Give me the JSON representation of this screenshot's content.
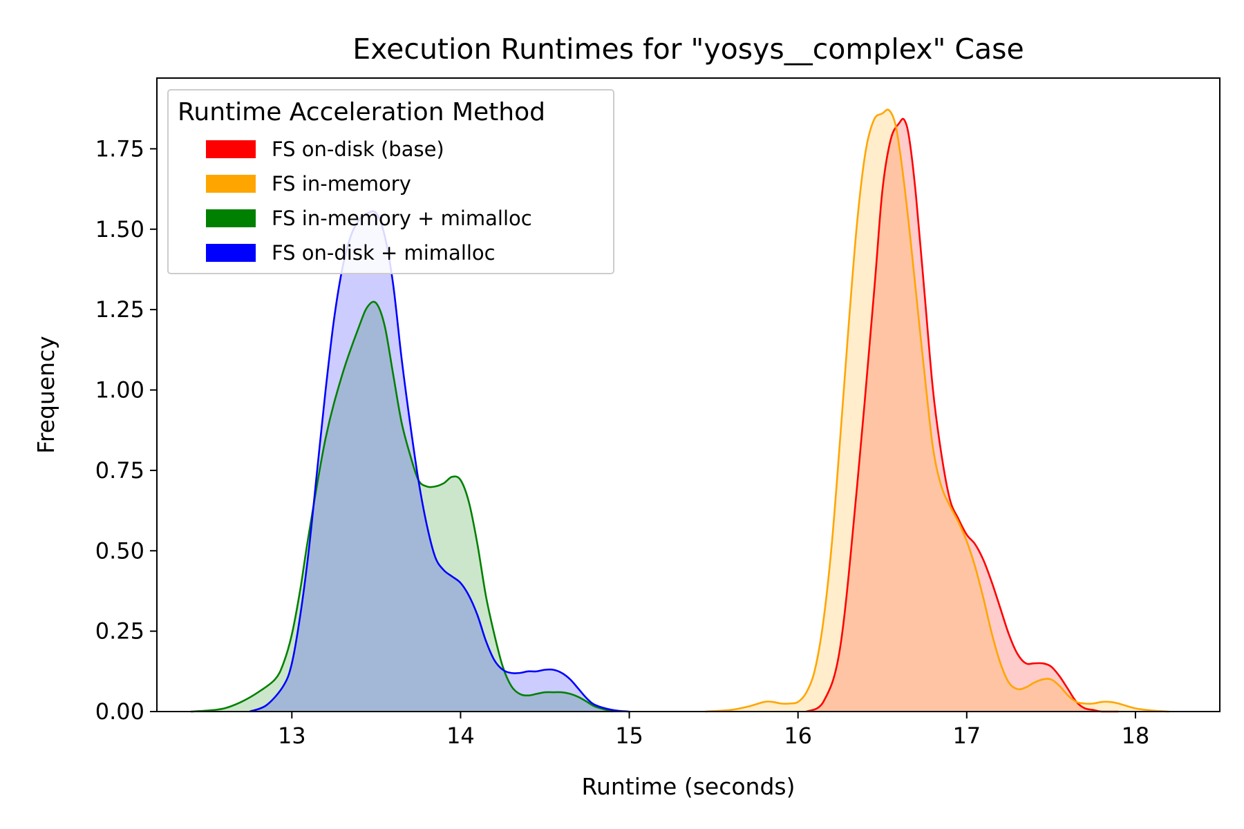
{
  "chart_data": {
    "type": "area",
    "title": "Execution Runtimes for \"yosys__complex\" Case",
    "xlabel": "Runtime (seconds)",
    "ylabel": "Frequency",
    "xlim": [
      12.2,
      18.5
    ],
    "ylim": [
      0,
      1.97
    ],
    "xticks": [
      "13",
      "14",
      "15",
      "16",
      "17",
      "18"
    ],
    "yticks": [
      "0.00",
      "0.25",
      "0.50",
      "0.75",
      "1.00",
      "1.25",
      "1.50",
      "1.75"
    ],
    "grid": false,
    "legend": {
      "title": "Runtime Acceleration Method",
      "placement": "upper-left"
    },
    "series": [
      {
        "name": "FS on-disk (base)",
        "color": "#ff0000",
        "x": [
          16.05,
          16.15,
          16.25,
          16.35,
          16.45,
          16.5,
          16.55,
          16.6,
          16.63,
          16.66,
          16.7,
          16.75,
          16.8,
          16.85,
          16.9,
          16.95,
          17.0,
          17.05,
          17.1,
          17.15,
          17.2,
          17.25,
          17.3,
          17.35,
          17.4,
          17.45,
          17.5,
          17.55,
          17.6,
          17.65,
          17.7,
          17.75,
          17.8,
          17.9
        ],
        "y": [
          0.0,
          0.03,
          0.2,
          0.7,
          1.3,
          1.62,
          1.78,
          1.83,
          1.84,
          1.78,
          1.6,
          1.3,
          1.0,
          0.8,
          0.66,
          0.6,
          0.55,
          0.52,
          0.47,
          0.4,
          0.32,
          0.24,
          0.18,
          0.15,
          0.15,
          0.15,
          0.14,
          0.11,
          0.07,
          0.03,
          0.01,
          0.005,
          0.0,
          0.0
        ]
      },
      {
        "name": "FS in-memory",
        "color": "#ffa500",
        "x": [
          15.45,
          15.6,
          15.7,
          15.8,
          15.85,
          15.9,
          15.95,
          16.0,
          16.05,
          16.1,
          16.15,
          16.2,
          16.25,
          16.3,
          16.35,
          16.4,
          16.45,
          16.5,
          16.54,
          16.58,
          16.62,
          16.66,
          16.7,
          16.75,
          16.8,
          16.85,
          16.9,
          16.95,
          17.0,
          17.05,
          17.1,
          17.15,
          17.2,
          17.25,
          17.3,
          17.35,
          17.4,
          17.45,
          17.5,
          17.55,
          17.6,
          17.65,
          17.7,
          17.75,
          17.8,
          17.85,
          17.9,
          18.0,
          18.1,
          18.2
        ],
        "y": [
          0.0,
          0.005,
          0.015,
          0.03,
          0.03,
          0.025,
          0.025,
          0.03,
          0.06,
          0.13,
          0.28,
          0.52,
          0.85,
          1.2,
          1.52,
          1.74,
          1.84,
          1.86,
          1.87,
          1.82,
          1.68,
          1.5,
          1.3,
          1.05,
          0.82,
          0.7,
          0.64,
          0.59,
          0.53,
          0.45,
          0.35,
          0.24,
          0.15,
          0.09,
          0.07,
          0.075,
          0.09,
          0.1,
          0.1,
          0.08,
          0.05,
          0.03,
          0.025,
          0.025,
          0.03,
          0.03,
          0.025,
          0.01,
          0.003,
          0.0
        ]
      },
      {
        "name": "FS in-memory + mimalloc",
        "color": "#008000",
        "x": [
          12.4,
          12.5,
          12.6,
          12.7,
          12.8,
          12.9,
          12.95,
          13.0,
          13.05,
          13.1,
          13.2,
          13.3,
          13.4,
          13.45,
          13.5,
          13.55,
          13.6,
          13.65,
          13.7,
          13.75,
          13.8,
          13.85,
          13.9,
          13.95,
          14.0,
          14.05,
          14.1,
          14.15,
          14.2,
          14.25,
          14.3,
          14.35,
          14.4,
          14.45,
          14.5,
          14.55,
          14.6,
          14.65,
          14.7,
          14.75,
          14.8,
          14.9
        ],
        "y": [
          0.0,
          0.003,
          0.01,
          0.03,
          0.06,
          0.1,
          0.15,
          0.24,
          0.38,
          0.55,
          0.85,
          1.05,
          1.2,
          1.26,
          1.27,
          1.2,
          1.05,
          0.9,
          0.8,
          0.72,
          0.7,
          0.7,
          0.71,
          0.73,
          0.72,
          0.65,
          0.52,
          0.36,
          0.24,
          0.14,
          0.08,
          0.055,
          0.05,
          0.055,
          0.06,
          0.06,
          0.06,
          0.055,
          0.045,
          0.03,
          0.015,
          0.0
        ]
      },
      {
        "name": "FS on-disk + mimalloc",
        "color": "#0000ff",
        "x": [
          12.75,
          12.85,
          12.95,
          13.0,
          13.05,
          13.1,
          13.15,
          13.2,
          13.25,
          13.3,
          13.35,
          13.4,
          13.45,
          13.5,
          13.55,
          13.6,
          13.65,
          13.7,
          13.75,
          13.8,
          13.85,
          13.9,
          13.95,
          14.0,
          14.05,
          14.1,
          14.15,
          14.2,
          14.25,
          14.3,
          14.35,
          14.4,
          14.45,
          14.5,
          14.55,
          14.6,
          14.65,
          14.7,
          14.75,
          14.8,
          14.9,
          15.0
        ],
        "y": [
          0.0,
          0.02,
          0.08,
          0.15,
          0.3,
          0.5,
          0.75,
          1.0,
          1.22,
          1.38,
          1.48,
          1.53,
          1.55,
          1.55,
          1.48,
          1.33,
          1.1,
          0.9,
          0.72,
          0.58,
          0.48,
          0.44,
          0.42,
          0.4,
          0.36,
          0.3,
          0.22,
          0.16,
          0.13,
          0.12,
          0.12,
          0.125,
          0.125,
          0.13,
          0.13,
          0.12,
          0.1,
          0.07,
          0.04,
          0.02,
          0.005,
          0.0
        ]
      }
    ]
  }
}
